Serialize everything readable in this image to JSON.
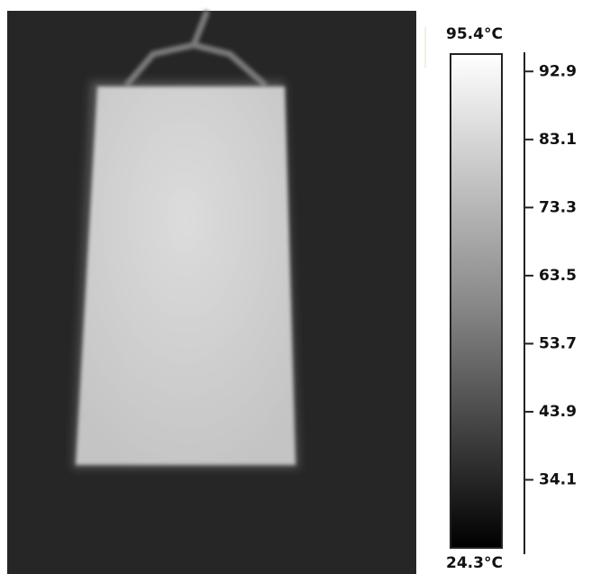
{
  "scale": {
    "max_label": "95.4°C",
    "min_label": "24.3°C",
    "range": [
      24.3,
      95.4
    ],
    "ticks": [
      92.9,
      83.1,
      73.3,
      63.5,
      53.7,
      43.9,
      34.1
    ]
  }
}
